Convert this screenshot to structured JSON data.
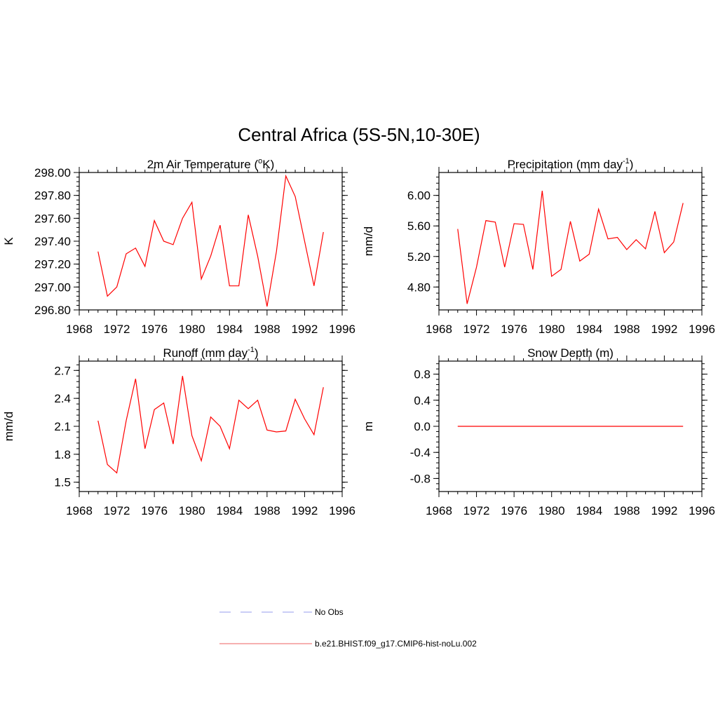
{
  "title": "Central Africa (5S-5N,10-30E)",
  "chart_data": [
    {
      "type": "line",
      "title": {
        "pre": "2m Air Temperature (",
        "sup": "o",
        "post": "K)"
      },
      "ylabel": "K",
      "xlim": [
        1968,
        1996
      ],
      "xticks": [
        "1968",
        "1972",
        "1976",
        "1980",
        "1984",
        "1988",
        "1992",
        "1996"
      ],
      "ylim": [
        296.8,
        298.0
      ],
      "yticks": [
        "296.80",
        "297.00",
        "297.20",
        "297.40",
        "297.60",
        "297.80",
        "298.00"
      ],
      "series": [
        {
          "x": [
            1970,
            1971,
            1972,
            1973,
            1974,
            1975,
            1976,
            1977,
            1978,
            1979,
            1980,
            1981,
            1982,
            1983,
            1984,
            1985,
            1986,
            1987,
            1988,
            1989,
            1990,
            1991,
            1992,
            1993,
            1994
          ],
          "values": [
            297.31,
            296.92,
            297.0,
            297.29,
            297.34,
            297.18,
            297.58,
            297.4,
            297.37,
            297.6,
            297.74,
            297.07,
            297.27,
            297.54,
            297.01,
            297.01,
            297.63,
            297.27,
            296.83,
            297.31,
            297.97,
            297.79,
            297.4,
            297.01,
            297.48
          ],
          "color": "#ff0000"
        }
      ]
    },
    {
      "type": "line",
      "title": {
        "pre": "Precipitation (mm day",
        "sup": "-1",
        "post": ")"
      },
      "ylabel": "mm/d",
      "xlim": [
        1968,
        1996
      ],
      "xticks": [
        "1968",
        "1972",
        "1976",
        "1980",
        "1984",
        "1988",
        "1992",
        "1996"
      ],
      "ylim": [
        4.5,
        6.3
      ],
      "yticks": [
        "4.80",
        "5.20",
        "5.60",
        "6.00"
      ],
      "series": [
        {
          "x": [
            1970,
            1971,
            1972,
            1973,
            1974,
            1975,
            1976,
            1977,
            1978,
            1979,
            1980,
            1981,
            1982,
            1983,
            1984,
            1985,
            1986,
            1987,
            1988,
            1989,
            1990,
            1991,
            1992,
            1993,
            1994
          ],
          "values": [
            5.56,
            4.58,
            5.06,
            5.67,
            5.65,
            5.06,
            5.63,
            5.62,
            5.03,
            6.06,
            4.94,
            5.03,
            5.66,
            5.14,
            5.23,
            5.82,
            5.43,
            5.45,
            5.29,
            5.42,
            5.3,
            5.79,
            5.25,
            5.39,
            5.9
          ],
          "color": "#ff0000"
        }
      ]
    },
    {
      "type": "line",
      "title": {
        "pre": "Runoff (mm day",
        "sup": "-1",
        "post": ")"
      },
      "ylabel": "mm/d",
      "xlim": [
        1968,
        1996
      ],
      "xticks": [
        "1968",
        "1972",
        "1976",
        "1980",
        "1984",
        "1988",
        "1992",
        "1996"
      ],
      "ylim": [
        1.4,
        2.8
      ],
      "yticks": [
        "1.5",
        "1.8",
        "2.1",
        "2.4",
        "2.7"
      ],
      "series": [
        {
          "x": [
            1970,
            1971,
            1972,
            1973,
            1974,
            1975,
            1976,
            1977,
            1978,
            1979,
            1980,
            1981,
            1982,
            1983,
            1984,
            1985,
            1986,
            1987,
            1988,
            1989,
            1990,
            1991,
            1992,
            1993,
            1994
          ],
          "values": [
            2.16,
            1.69,
            1.6,
            2.16,
            2.61,
            1.86,
            2.28,
            2.35,
            1.91,
            2.64,
            2.0,
            1.73,
            2.2,
            2.1,
            1.86,
            2.38,
            2.29,
            2.38,
            2.06,
            2.04,
            2.05,
            2.39,
            2.18,
            2.01,
            2.52
          ],
          "color": "#ff0000"
        }
      ]
    },
    {
      "type": "line",
      "title": {
        "pre": "Snow Depth (m)",
        "sup": "",
        "post": ""
      },
      "ylabel": "m",
      "xlim": [
        1968,
        1996
      ],
      "xticks": [
        "1968",
        "1972",
        "1976",
        "1980",
        "1984",
        "1988",
        "1992",
        "1996"
      ],
      "ylim": [
        -1.0,
        1.0
      ],
      "yticks": [
        "-0.8",
        "-0.4",
        "0.0",
        "0.4",
        "0.8"
      ],
      "series": [
        {
          "x": [
            1970,
            1994
          ],
          "values": [
            0.0,
            0.0
          ],
          "color": "#ff0000"
        }
      ]
    }
  ],
  "legend": [
    {
      "label": "No Obs",
      "style": "dashed",
      "color": "#aab0f0"
    },
    {
      "label": "b.e21.BHIST.f09_g17.CMIP6-hist-noLu.002",
      "style": "solid",
      "color": "#f08080"
    }
  ]
}
